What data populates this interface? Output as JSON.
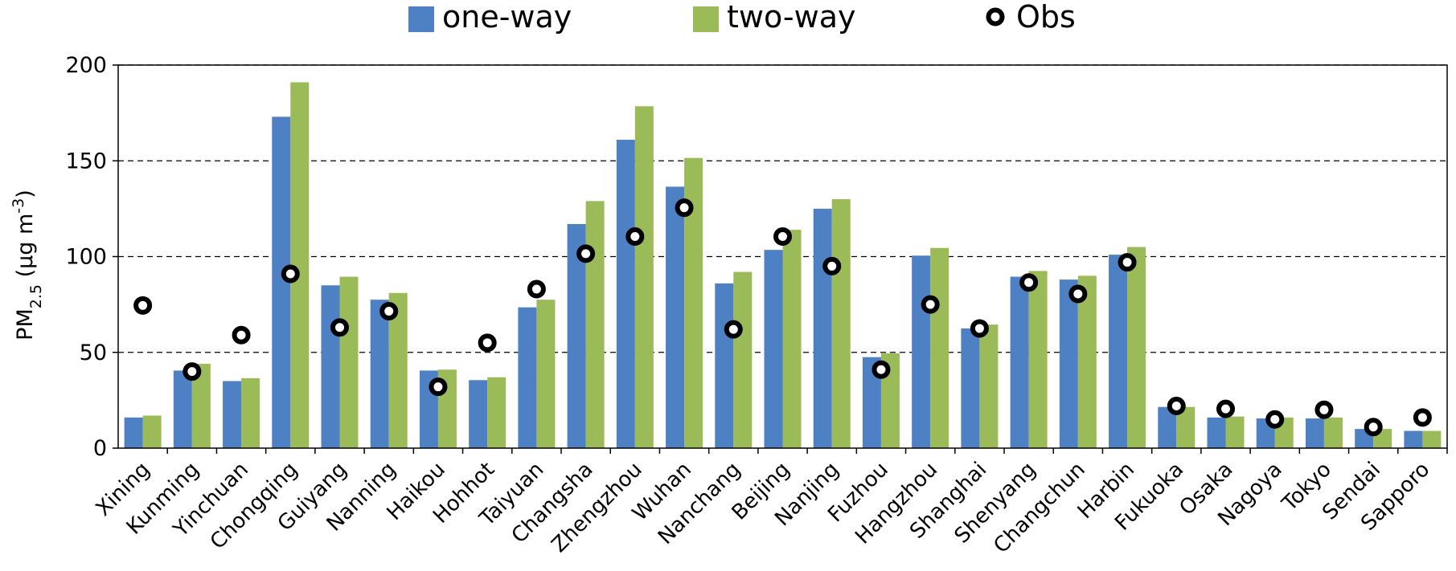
{
  "chart_data": {
    "type": "bar",
    "title": "",
    "xlabel": "",
    "ylabel": {
      "main": "PM",
      "sub": "2.5",
      "unit_open": " (µg m",
      "unit_sup": "-3",
      "unit_close": ")"
    },
    "ylim": [
      0,
      200
    ],
    "yticks": [
      0,
      50,
      100,
      150,
      200
    ],
    "grid": "horizontal-dashed",
    "legend_position": "top",
    "categories": [
      "Xining",
      "Kunming",
      "Yinchuan",
      "Chongqing",
      "Guiyang",
      "Nanning",
      "Haikou",
      "Hohhot",
      "Taiyuan",
      "Changsha",
      "Zhengzhou",
      "Wuhan",
      "Nanchang",
      "Beijing",
      "Nanjing",
      "Fuzhou",
      "Hangzhou",
      "Shanghai",
      "Shenyang",
      "Changchun",
      "Harbin",
      "Fukuoka",
      "Osaka",
      "Nagoya",
      "Tokyo",
      "Sendai",
      "Sapporo"
    ],
    "series": [
      {
        "name": "one-way",
        "kind": "bar",
        "color": "#4e81c4",
        "values": [
          16,
          40.5,
          35,
          173,
          85,
          77.5,
          40.5,
          35.5,
          73.5,
          117,
          161,
          136.5,
          86,
          103.5,
          125,
          47.5,
          100.5,
          62.5,
          89.5,
          88,
          101,
          21.5,
          16,
          15.5,
          15.5,
          10,
          9
        ]
      },
      {
        "name": "two-way",
        "kind": "bar",
        "color": "#9bbb59",
        "values": [
          17,
          44,
          36.5,
          191,
          89.5,
          81,
          41,
          37,
          77.5,
          129,
          178.5,
          151.5,
          92,
          114,
          130,
          49.5,
          104.5,
          64.5,
          92.5,
          90,
          105,
          21.5,
          16.5,
          16,
          16,
          10,
          9
        ]
      },
      {
        "name": "Obs",
        "kind": "point",
        "color": "#000000",
        "values": [
          74.5,
          40,
          59,
          91,
          63,
          71.5,
          32,
          55,
          83,
          101.5,
          110.5,
          125.5,
          62,
          110.5,
          95,
          41,
          75,
          62.5,
          86.5,
          80.5,
          97,
          22,
          20.5,
          15,
          20,
          11,
          16
        ]
      }
    ]
  }
}
